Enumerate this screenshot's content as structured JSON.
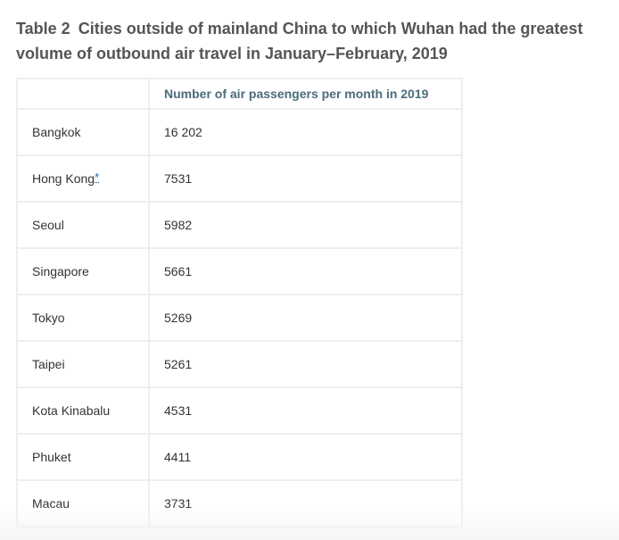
{
  "caption": {
    "label": "Table 2",
    "title": "Cities outside of mainland China to which Wuhan had the greatest volume of outbound air travel in January–February, 2019"
  },
  "table": {
    "headers": [
      "",
      "Number of air passengers per month in 2019"
    ],
    "rows": [
      {
        "city": "Bangkok",
        "passengers": "16 202",
        "footnote": ""
      },
      {
        "city": "Hong Kong",
        "passengers": "7531",
        "footnote": "*"
      },
      {
        "city": "Seoul",
        "passengers": "5982",
        "footnote": ""
      },
      {
        "city": "Singapore",
        "passengers": "5661",
        "footnote": ""
      },
      {
        "city": "Tokyo",
        "passengers": "5269",
        "footnote": ""
      },
      {
        "city": "Taipei",
        "passengers": "5261",
        "footnote": ""
      },
      {
        "city": "Kota Kinabalu",
        "passengers": "4531",
        "footnote": ""
      },
      {
        "city": "Phuket",
        "passengers": "4411",
        "footnote": ""
      },
      {
        "city": "Macau",
        "passengers": "3731",
        "footnote": ""
      }
    ]
  },
  "colors": {
    "caption": "#555555",
    "header_text": "#4a6b7c",
    "border": "#eeeeee",
    "footnote_link": "#1a5fa8"
  }
}
